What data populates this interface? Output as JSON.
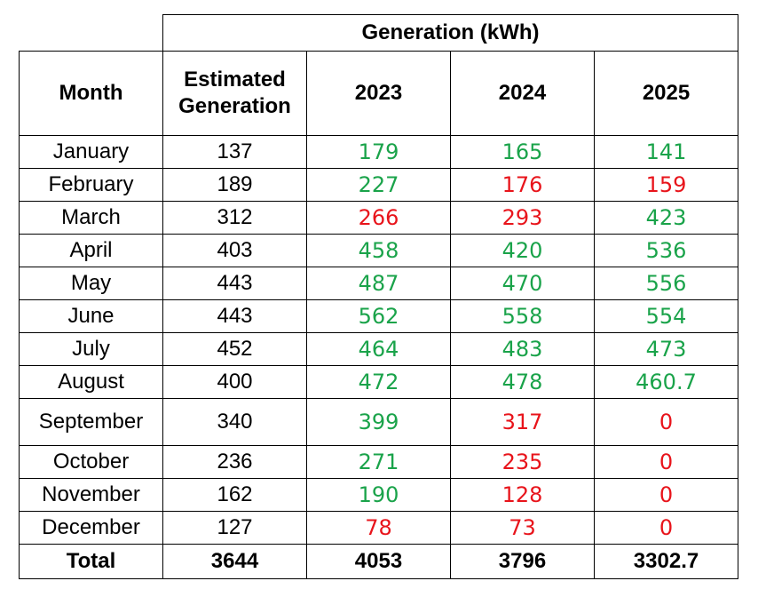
{
  "header": {
    "group_title": "Generation (kWh)",
    "month": "Month",
    "estimated": "Estimated Generation",
    "years": [
      "2023",
      "2024",
      "2025"
    ]
  },
  "colors": {
    "above": "#1aa34a",
    "below": "#e8141b",
    "neutral": "#000000"
  },
  "rows": [
    {
      "month": "January",
      "est": "137",
      "y2023": {
        "v": "179",
        "s": "above"
      },
      "y2024": {
        "v": "165",
        "s": "above"
      },
      "y2025": {
        "v": "141",
        "s": "above"
      }
    },
    {
      "month": "February",
      "est": "189",
      "y2023": {
        "v": "227",
        "s": "above"
      },
      "y2024": {
        "v": "176",
        "s": "below"
      },
      "y2025": {
        "v": "159",
        "s": "below"
      }
    },
    {
      "month": "March",
      "est": "312",
      "y2023": {
        "v": "266",
        "s": "below"
      },
      "y2024": {
        "v": "293",
        "s": "below"
      },
      "y2025": {
        "v": "423",
        "s": "above"
      }
    },
    {
      "month": "April",
      "est": "403",
      "y2023": {
        "v": "458",
        "s": "above"
      },
      "y2024": {
        "v": "420",
        "s": "above"
      },
      "y2025": {
        "v": "536",
        "s": "above"
      }
    },
    {
      "month": "May",
      "est": "443",
      "y2023": {
        "v": "487",
        "s": "above"
      },
      "y2024": {
        "v": "470",
        "s": "above"
      },
      "y2025": {
        "v": "556",
        "s": "above"
      }
    },
    {
      "month": "June",
      "est": "443",
      "y2023": {
        "v": "562",
        "s": "above"
      },
      "y2024": {
        "v": "558",
        "s": "above"
      },
      "y2025": {
        "v": "554",
        "s": "above"
      }
    },
    {
      "month": "July",
      "est": "452",
      "y2023": {
        "v": "464",
        "s": "above"
      },
      "y2024": {
        "v": "483",
        "s": "above"
      },
      "y2025": {
        "v": "473",
        "s": "above"
      }
    },
    {
      "month": "August",
      "est": "400",
      "y2023": {
        "v": "472",
        "s": "above"
      },
      "y2024": {
        "v": "478",
        "s": "above"
      },
      "y2025": {
        "v": "460.7",
        "s": "above"
      }
    },
    {
      "month": "September",
      "est": "340",
      "y2023": {
        "v": "399",
        "s": "above"
      },
      "y2024": {
        "v": "317",
        "s": "below"
      },
      "y2025": {
        "v": "0",
        "s": "below"
      }
    },
    {
      "month": "October",
      "est": "236",
      "y2023": {
        "v": "271",
        "s": "above"
      },
      "y2024": {
        "v": "235",
        "s": "below"
      },
      "y2025": {
        "v": "0",
        "s": "below"
      }
    },
    {
      "month": "November",
      "est": "162",
      "y2023": {
        "v": "190",
        "s": "above"
      },
      "y2024": {
        "v": "128",
        "s": "below"
      },
      "y2025": {
        "v": "0",
        "s": "below"
      }
    },
    {
      "month": "December",
      "est": "127",
      "y2023": {
        "v": "78",
        "s": "below"
      },
      "y2024": {
        "v": "73",
        "s": "below"
      },
      "y2025": {
        "v": "0",
        "s": "below"
      }
    }
  ],
  "total": {
    "label": "Total",
    "est": "3644",
    "y2023": "4053",
    "y2024": "3796",
    "y2025": "3302.7"
  }
}
